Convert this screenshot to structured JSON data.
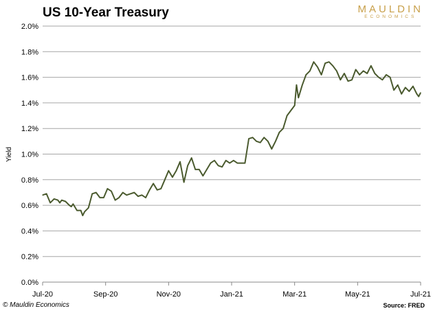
{
  "header": {
    "title": "US 10-Year Treasury"
  },
  "brand": {
    "name": "MAULDIN",
    "sub": "ECONOMICS",
    "color": "#c8a04a"
  },
  "footer": {
    "copyright": "© Mauldin Economics",
    "source": "Source: FRED"
  },
  "chart_data": {
    "type": "line",
    "title": "US 10-Year Treasury",
    "xlabel": "",
    "ylabel": "Yield",
    "ylim": [
      0,
      2.0
    ],
    "grid": true,
    "line_color": "#4a5a2e",
    "yticks": [
      "0.0%",
      "0.2%",
      "0.4%",
      "0.6%",
      "0.8%",
      "1.0%",
      "1.2%",
      "1.4%",
      "1.6%",
      "1.8%",
      "2.0%"
    ],
    "xticks": [
      "Jul-20",
      "Sep-20",
      "Nov-20",
      "Jan-21",
      "Mar-21",
      "May-21",
      "Jul-21"
    ],
    "series": [
      {
        "values": [
          [
            0.0,
            0.68
          ],
          [
            1.0,
            0.69
          ],
          [
            2.0,
            0.62
          ],
          [
            3.0,
            0.65
          ],
          [
            4.0,
            0.64
          ],
          [
            4.5,
            0.62
          ],
          [
            5.0,
            0.64
          ],
          [
            6.0,
            0.63
          ],
          [
            7.0,
            0.6
          ],
          [
            7.5,
            0.59
          ],
          [
            8.0,
            0.61
          ],
          [
            9.0,
            0.56
          ],
          [
            10.0,
            0.56
          ],
          [
            10.5,
            0.52
          ],
          [
            11.0,
            0.55
          ],
          [
            12.0,
            0.58
          ],
          [
            13.0,
            0.69
          ],
          [
            14.0,
            0.7
          ],
          [
            15.0,
            0.66
          ],
          [
            16.0,
            0.66
          ],
          [
            17.0,
            0.73
          ],
          [
            18.0,
            0.71
          ],
          [
            19.0,
            0.64
          ],
          [
            20.0,
            0.66
          ],
          [
            21.0,
            0.7
          ],
          [
            22.0,
            0.68
          ],
          [
            23.0,
            0.69
          ],
          [
            24.0,
            0.7
          ],
          [
            25.0,
            0.67
          ],
          [
            26.0,
            0.68
          ],
          [
            27.0,
            0.66
          ],
          [
            28.0,
            0.72
          ],
          [
            29.0,
            0.77
          ],
          [
            30.0,
            0.72
          ],
          [
            31.0,
            0.73
          ],
          [
            32.0,
            0.8
          ],
          [
            33.0,
            0.87
          ],
          [
            34.0,
            0.82
          ],
          [
            35.0,
            0.87
          ],
          [
            36.0,
            0.94
          ],
          [
            37.0,
            0.78
          ],
          [
            38.0,
            0.91
          ],
          [
            39.0,
            0.97
          ],
          [
            40.0,
            0.88
          ],
          [
            41.0,
            0.88
          ],
          [
            42.0,
            0.83
          ],
          [
            43.0,
            0.88
          ],
          [
            44.0,
            0.93
          ],
          [
            45.0,
            0.95
          ],
          [
            46.0,
            0.91
          ],
          [
            47.0,
            0.9
          ],
          [
            48.0,
            0.95
          ],
          [
            49.0,
            0.93
          ],
          [
            50.0,
            0.95
          ],
          [
            51.0,
            0.93
          ],
          [
            52.0,
            0.93
          ],
          [
            53.0,
            0.93
          ],
          [
            54.0,
            1.12
          ],
          [
            55.0,
            1.13
          ],
          [
            56.0,
            1.1
          ],
          [
            57.0,
            1.09
          ],
          [
            58.0,
            1.13
          ],
          [
            59.0,
            1.1
          ],
          [
            60.0,
            1.04
          ],
          [
            61.0,
            1.1
          ],
          [
            62.0,
            1.17
          ],
          [
            63.0,
            1.2
          ],
          [
            64.0,
            1.3
          ],
          [
            65.0,
            1.34
          ],
          [
            66.0,
            1.38
          ],
          [
            66.5,
            1.54
          ],
          [
            67.0,
            1.44
          ],
          [
            68.0,
            1.54
          ],
          [
            69.0,
            1.62
          ],
          [
            70.0,
            1.65
          ],
          [
            71.0,
            1.72
          ],
          [
            72.0,
            1.68
          ],
          [
            73.0,
            1.62
          ],
          [
            74.0,
            1.71
          ],
          [
            75.0,
            1.72
          ],
          [
            76.0,
            1.69
          ],
          [
            77.0,
            1.65
          ],
          [
            78.0,
            1.58
          ],
          [
            79.0,
            1.63
          ],
          [
            80.0,
            1.57
          ],
          [
            81.0,
            1.58
          ],
          [
            82.0,
            1.66
          ],
          [
            83.0,
            1.62
          ],
          [
            84.0,
            1.65
          ],
          [
            85.0,
            1.63
          ],
          [
            86.0,
            1.69
          ],
          [
            87.0,
            1.63
          ],
          [
            88.0,
            1.6
          ],
          [
            89.0,
            1.58
          ],
          [
            90.0,
            1.62
          ],
          [
            91.0,
            1.6
          ],
          [
            92.0,
            1.5
          ],
          [
            93.0,
            1.54
          ],
          [
            94.0,
            1.47
          ],
          [
            95.0,
            1.52
          ],
          [
            96.0,
            1.49
          ],
          [
            97.0,
            1.53
          ],
          [
            98.0,
            1.47
          ],
          [
            98.5,
            1.45
          ],
          [
            99.0,
            1.48
          ]
        ]
      }
    ]
  }
}
